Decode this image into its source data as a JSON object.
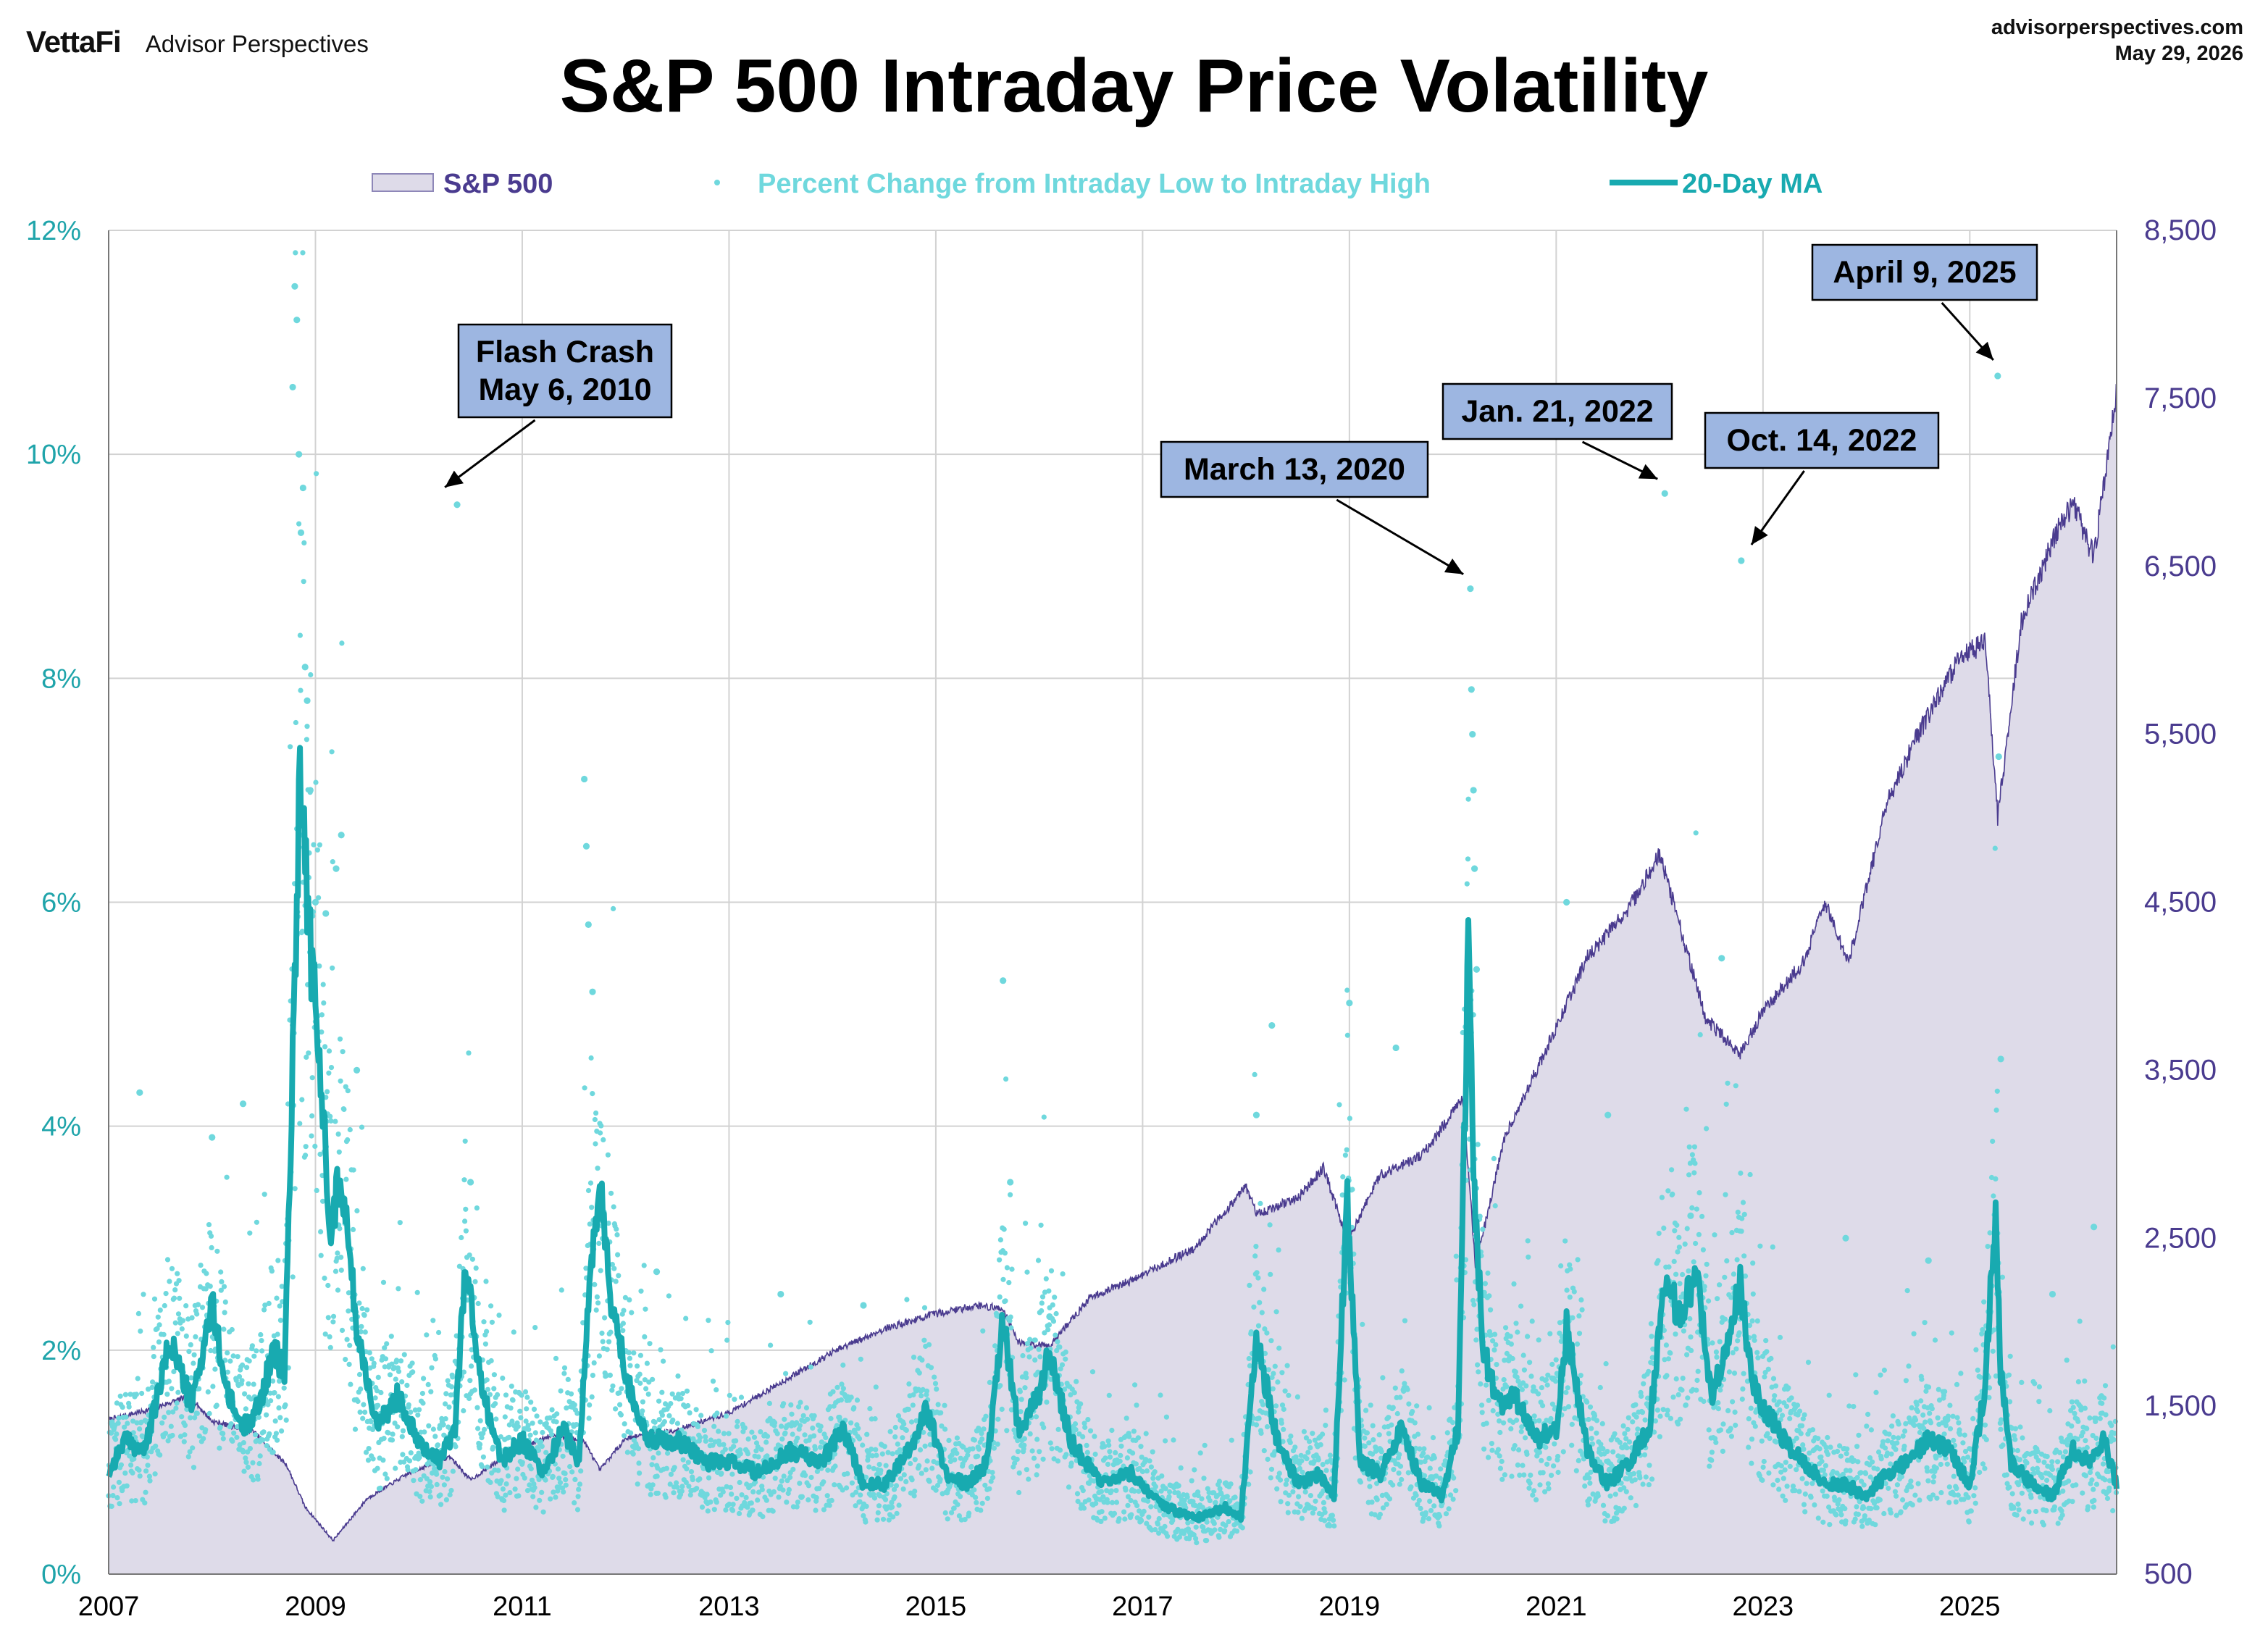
{
  "header": {
    "brand": "VettaFi",
    "sub_brand": "Advisor Perspectives",
    "site": "advisorperspectives.com",
    "date": "May 29, 2026"
  },
  "colors": {
    "area_fill": "#dedbe9",
    "area_line": "#4a3b8f",
    "scatter": "#6fd8dd",
    "ma_line": "#18aab0",
    "left_axis": "#1fa4aa",
    "right_axis": "#4a3b8f",
    "grid": "#d2d2d2",
    "callout_fill": "#9db6e1"
  },
  "chart_data": {
    "type": "line",
    "title": "S&P 500 Intraday Price Volatility",
    "x_range": [
      2007,
      2026.42
    ],
    "x_ticks": [
      "2007",
      "2009",
      "2011",
      "2013",
      "2015",
      "2017",
      "2019",
      "2021",
      "2023",
      "2025"
    ],
    "y_left": {
      "unit": "%",
      "range": [
        0,
        12
      ],
      "ticks": [
        "0%",
        "2%",
        "4%",
        "6%",
        "8%",
        "10%",
        "12%"
      ]
    },
    "y_right": {
      "range": [
        500,
        8500
      ],
      "ticks": [
        "500",
        "1,500",
        "2,500",
        "3,500",
        "4,500",
        "5,500",
        "6,500",
        "7,500",
        "8,500"
      ]
    },
    "grid": true,
    "legend": {
      "placement": "top",
      "items": [
        {
          "label": "S&P 500",
          "kind": "area"
        },
        {
          "label": "Percent Change from Intraday Low to Intraday High",
          "kind": "dots"
        },
        {
          "label": "20-Day MA",
          "kind": "line"
        }
      ]
    },
    "series": [
      {
        "name": "S&P 500",
        "axis": "right",
        "x": [
          2007.0,
          2007.4,
          2007.78,
          2008.0,
          2008.4,
          2008.72,
          2008.9,
          2009.17,
          2009.5,
          2009.9,
          2010.3,
          2010.5,
          2010.9,
          2011.3,
          2011.6,
          2011.75,
          2012.0,
          2012.5,
          2013.0,
          2013.5,
          2014.0,
          2014.5,
          2015.0,
          2015.4,
          2015.65,
          2015.8,
          2016.1,
          2016.5,
          2016.9,
          2017.5,
          2018.0,
          2018.1,
          2018.5,
          2018.75,
          2018.98,
          2019.3,
          2019.7,
          2020.1,
          2020.22,
          2020.5,
          2020.9,
          2021.3,
          2021.7,
          2022.0,
          2022.45,
          2022.78,
          2023.0,
          2023.4,
          2023.6,
          2023.83,
          2024.2,
          2024.5,
          2024.9,
          2025.15,
          2025.27,
          2025.5,
          2025.8,
          2026.0,
          2026.2,
          2026.3,
          2026.42
        ],
        "values": [
          1420,
          1480,
          1560,
          1410,
          1350,
          1150,
          900,
          700,
          950,
          1100,
          1200,
          1060,
          1230,
          1330,
          1290,
          1120,
          1310,
          1360,
          1460,
          1640,
          1820,
          1960,
          2050,
          2100,
          2080,
          1880,
          1860,
          2150,
          2250,
          2440,
          2810,
          2640,
          2740,
          2920,
          2480,
          2880,
          2990,
          3330,
          2330,
          3100,
          3620,
          4170,
          4460,
          4790,
          3800,
          3600,
          3850,
          4150,
          4500,
          4140,
          5100,
          5500,
          5950,
          6050,
          5000,
          6170,
          6650,
          6880,
          6550,
          7000,
          7550
        ]
      },
      {
        "name": "20-Day MA",
        "axis": "left",
        "unit": "%",
        "x": [
          2007.0,
          2007.15,
          2007.35,
          2007.6,
          2007.8,
          2008.0,
          2008.15,
          2008.3,
          2008.45,
          2008.6,
          2008.7,
          2008.78,
          2008.85,
          2008.95,
          2009.05,
          2009.15,
          2009.25,
          2009.4,
          2009.6,
          2009.8,
          2010.0,
          2010.2,
          2010.35,
          2010.45,
          2010.6,
          2010.8,
          2011.0,
          2011.2,
          2011.4,
          2011.55,
          2011.65,
          2011.75,
          2011.85,
          2012.0,
          2012.2,
          2012.5,
          2012.8,
          2013.0,
          2013.3,
          2013.6,
          2013.9,
          2014.1,
          2014.3,
          2014.5,
          2014.8,
          2014.9,
          2015.1,
          2015.3,
          2015.5,
          2015.65,
          2015.8,
          2016.0,
          2016.1,
          2016.3,
          2016.6,
          2016.9,
          2017.2,
          2017.5,
          2017.8,
          2017.95,
          2018.1,
          2018.3,
          2018.5,
          2018.7,
          2018.85,
          2018.98,
          2019.1,
          2019.3,
          2019.5,
          2019.7,
          2019.9,
          2020.05,
          2020.15,
          2020.22,
          2020.3,
          2020.45,
          2020.6,
          2020.8,
          2021.0,
          2021.1,
          2021.3,
          2021.5,
          2021.7,
          2021.9,
          2022.05,
          2022.2,
          2022.35,
          2022.5,
          2022.65,
          2022.78,
          2022.9,
          2023.0,
          2023.2,
          2023.4,
          2023.6,
          2023.8,
          2024.0,
          2024.2,
          2024.4,
          2024.6,
          2024.8,
          2025.0,
          2025.15,
          2025.25,
          2025.3,
          2025.4,
          2025.6,
          2025.8,
          2026.0,
          2026.15,
          2026.3,
          2026.42
        ],
        "values": [
          0.9,
          1.2,
          1.1,
          2.1,
          1.5,
          2.4,
          1.6,
          1.3,
          1.5,
          2.0,
          1.8,
          4.5,
          7.3,
          5.6,
          4.4,
          3.1,
          3.6,
          2.2,
          1.3,
          1.6,
          1.2,
          1.0,
          1.3,
          2.8,
          1.7,
          1.0,
          1.2,
          0.9,
          1.3,
          1.0,
          2.6,
          3.5,
          2.5,
          1.8,
          1.2,
          1.2,
          1.0,
          1.0,
          0.9,
          1.1,
          1.0,
          1.3,
          0.8,
          0.8,
          1.2,
          1.5,
          0.9,
          0.8,
          1.0,
          2.3,
          1.3,
          1.6,
          2.0,
          1.2,
          0.8,
          0.9,
          0.6,
          0.5,
          0.6,
          0.5,
          2.1,
          1.2,
          0.8,
          0.9,
          0.7,
          3.4,
          1.0,
          0.9,
          1.3,
          0.8,
          0.7,
          1.3,
          5.5,
          3.1,
          2.0,
          1.5,
          1.6,
          1.2,
          1.3,
          2.2,
          1.1,
          0.8,
          1.0,
          1.3,
          2.6,
          2.3,
          2.7,
          1.6,
          2.0,
          2.6,
          1.7,
          1.5,
          1.2,
          1.0,
          0.8,
          0.8,
          0.7,
          0.9,
          1.0,
          1.2,
          1.1,
          0.8,
          1.7,
          3.3,
          1.8,
          1.0,
          0.8,
          0.7,
          1.1,
          1.0,
          1.2,
          0.8
        ]
      },
      {
        "name": "Percent Change from Intraday Low to Intraday High",
        "axis": "left",
        "unit": "%",
        "kind": "dots",
        "x": [
          2008.78,
          2008.8,
          2008.82,
          2008.84,
          2008.86,
          2008.88,
          2008.9,
          2008.92,
          2008.95,
          2009.0,
          2009.1,
          2009.2,
          2009.25,
          2010.37,
          2011.6,
          2011.62,
          2011.64,
          2011.68,
          2020.17,
          2020.18,
          2020.19,
          2020.2,
          2020.21,
          2020.23,
          2022.05,
          2022.79,
          2025.27,
          2025.28,
          2025.3,
          2007.3,
          2008.0,
          2008.3,
          2009.4,
          2010.5,
          2012.3,
          2013.5,
          2014.3,
          2015.65,
          2015.72,
          2016.1,
          2018.1,
          2018.25,
          2019.0,
          2019.45,
          2021.1,
          2021.5,
          2022.3,
          2022.6,
          2023.8,
          2024.6,
          2025.8,
          2026.2
        ],
        "values": [
          10.6,
          11.5,
          11.2,
          10.0,
          9.3,
          9.7,
          8.1,
          7.8,
          7.0,
          6.0,
          5.9,
          6.3,
          6.6,
          9.55,
          7.1,
          6.5,
          5.8,
          5.2,
          8.8,
          7.9,
          7.5,
          7.0,
          6.3,
          5.4,
          9.65,
          9.05,
          10.7,
          7.3,
          4.6,
          4.3,
          3.9,
          4.2,
          4.5,
          3.5,
          2.7,
          2.5,
          2.4,
          5.3,
          3.5,
          2.3,
          4.1,
          4.9,
          5.1,
          4.7,
          6.0,
          4.1,
          3.2,
          5.5,
          3.0,
          2.8,
          2.5,
          3.1
        ]
      }
    ],
    "annotations": [
      {
        "text": [
          "Flash Crash",
          "May 6, 2010"
        ],
        "x": 2010.35,
        "y": 9.55
      },
      {
        "text": [
          "March 13, 2020"
        ],
        "x": 2020.2,
        "y": 8.8
      },
      {
        "text": [
          "Jan. 21, 2022"
        ],
        "x": 2022.05,
        "y": 9.65
      },
      {
        "text": [
          "Oct. 14, 2022"
        ],
        "x": 2022.79,
        "y": 9.05
      },
      {
        "text": [
          "April 9, 2025"
        ],
        "x": 2025.27,
        "y": 10.7
      }
    ]
  }
}
